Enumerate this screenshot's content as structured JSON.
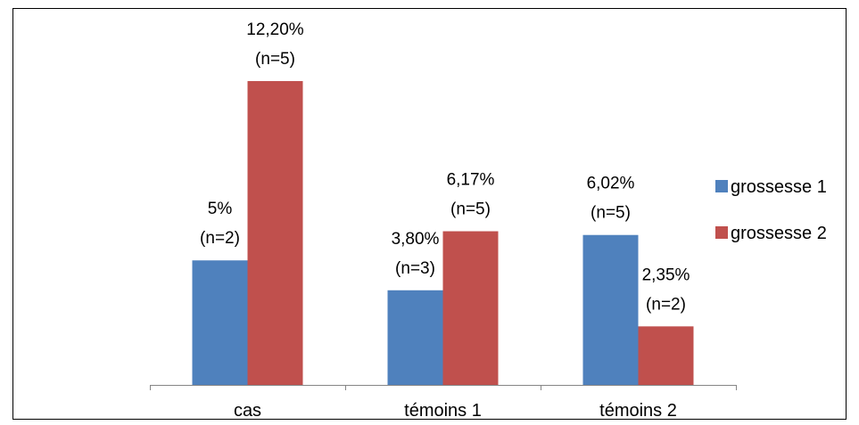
{
  "chart_data": {
    "type": "bar",
    "categories": [
      "cas",
      "témoins 1",
      "témoins 2"
    ],
    "series": [
      {
        "name": "grossesse 1",
        "color": "#4F81BD",
        "values": [
          5.0,
          3.8,
          6.02
        ],
        "labels": [
          [
            "5%",
            "(n=2)"
          ],
          [
            "3,80%",
            "(n=3)"
          ],
          [
            "6,02%",
            "(n=5)"
          ]
        ]
      },
      {
        "name": "grossesse 2",
        "color": "#C0504D",
        "values": [
          12.2,
          6.17,
          2.35
        ],
        "labels": [
          [
            "12,20%",
            "(n=5)"
          ],
          [
            "6,17%",
            "(n=5)"
          ],
          [
            "2,35%",
            "(n=2)"
          ]
        ]
      }
    ],
    "ylim": [
      0,
      13.2
    ],
    "grid": false,
    "legend": "right",
    "title": "",
    "xlabel": "",
    "ylabel": ""
  }
}
